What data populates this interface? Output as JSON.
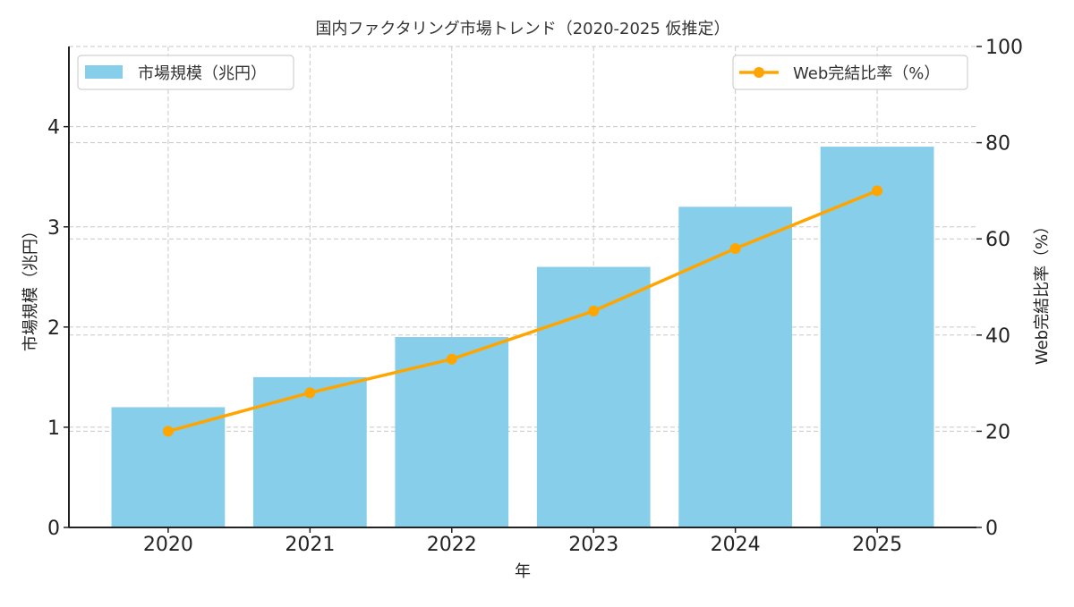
{
  "chart_data": {
    "type": "bar+line",
    "title": "国内ファクタリング市場トレンド（2020-2025 仮推定）",
    "xlabel": "年",
    "ylabel_left": "市場規模（兆円）",
    "ylabel_right": "Web完結比率（%）",
    "categories": [
      "2020",
      "2021",
      "2022",
      "2023",
      "2024",
      "2025"
    ],
    "series": [
      {
        "name": "市場規模（兆円）",
        "type": "bar",
        "axis": "left",
        "color": "#87CEEB",
        "values": [
          1.2,
          1.5,
          1.9,
          2.6,
          3.2,
          3.8
        ]
      },
      {
        "name": "Web完結比率（%）",
        "type": "line",
        "axis": "right",
        "color": "#FFA500",
        "marker": "circle",
        "values": [
          20,
          28,
          35,
          45,
          58,
          70
        ]
      }
    ],
    "ylim_left": [
      0,
      4.8
    ],
    "ylim_right": [
      0,
      100
    ],
    "yticks_left": [
      0,
      1,
      2,
      3,
      4
    ],
    "yticks_right": [
      0,
      20,
      40,
      60,
      80,
      100
    ],
    "grid": true,
    "grid_style": "dashed",
    "legend_left": {
      "position": "upper left",
      "label": "市場規模（兆円）"
    },
    "legend_right": {
      "position": "upper right",
      "label": "Web完結比率（%）"
    }
  }
}
